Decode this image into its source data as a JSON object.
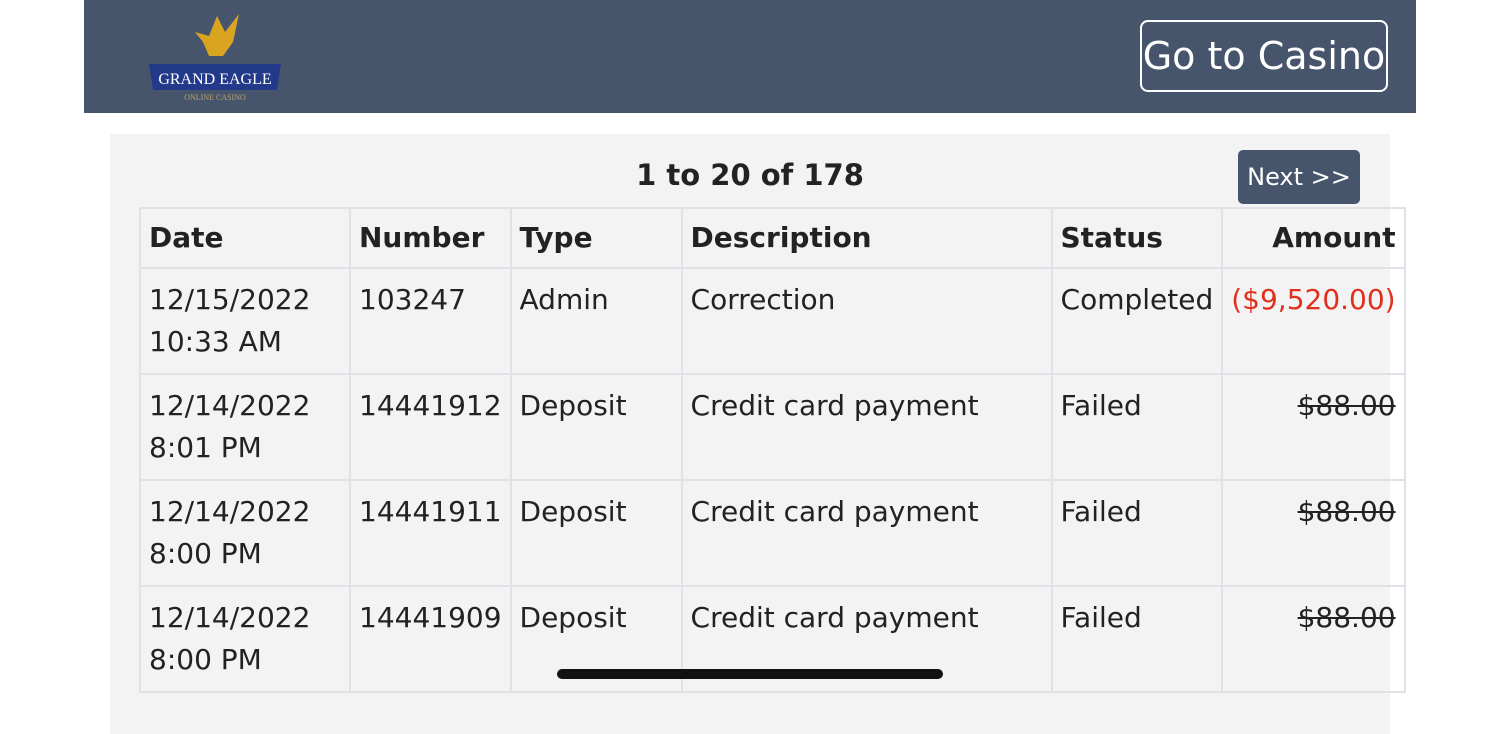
{
  "header": {
    "logo_text": "GRAND EAGLE",
    "logo_subtext": "ONLINE CASINO",
    "casino_button": "Go to Casino"
  },
  "pagination": {
    "summary": "1 to 20 of 178",
    "next_label": "Next >>"
  },
  "table": {
    "columns": [
      "Date",
      "Number",
      "Type",
      "Description",
      "Status",
      "Amount"
    ],
    "rows": [
      {
        "date": "12/15/2022",
        "time": "10:33 AM",
        "number": "103247",
        "type": "Admin",
        "description": "Correction",
        "status": "Completed",
        "amount": "($9,520.00)"
      },
      {
        "date": "12/14/2022",
        "time": "8:01 PM",
        "number": "14441912",
        "type": "Deposit",
        "description": "Credit card payment",
        "status": "Failed",
        "amount": "$88.00"
      },
      {
        "date": "12/14/2022",
        "time": "8:00 PM",
        "number": "14441911",
        "type": "Deposit",
        "description": "Credit card payment",
        "status": "Failed",
        "amount": "$88.00"
      },
      {
        "date": "12/14/2022",
        "time": "8:00 PM",
        "number": "14441909",
        "type": "Deposit",
        "description": "Credit card payment",
        "status": "Failed",
        "amount": "$88.00"
      }
    ]
  },
  "colors": {
    "header_bg": "#46556c",
    "negative_amount": "#e0301e"
  }
}
